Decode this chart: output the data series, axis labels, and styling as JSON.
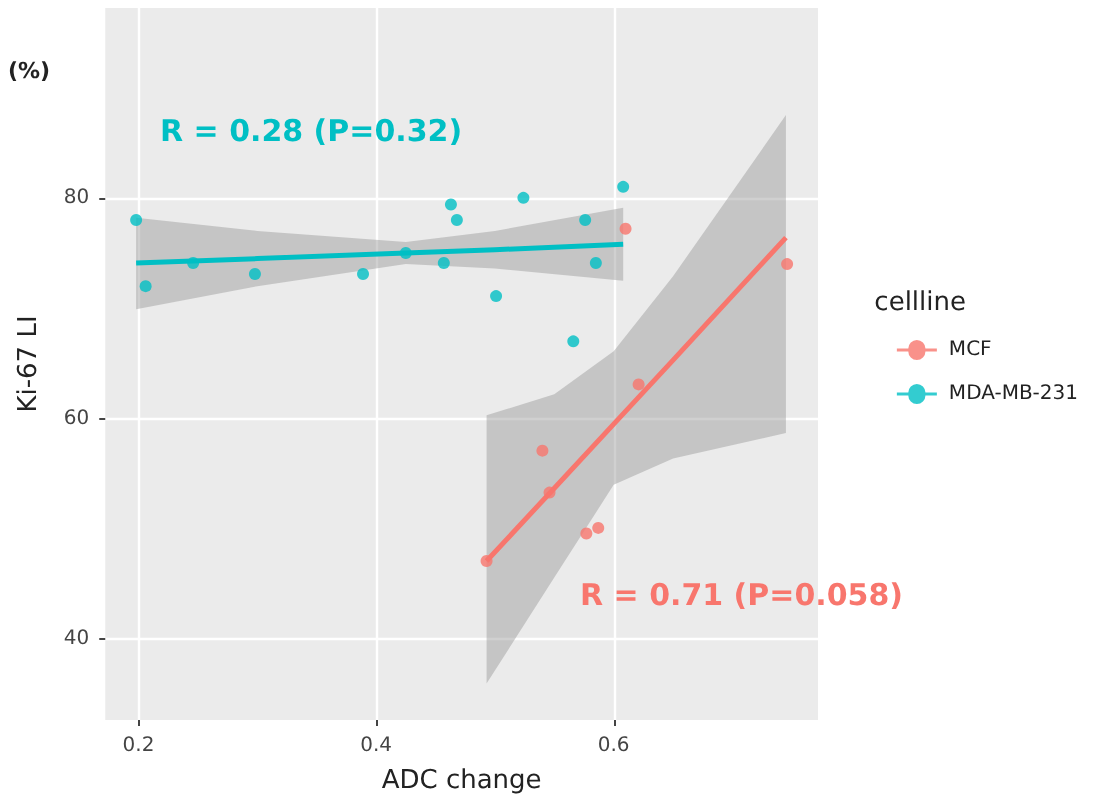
{
  "chart_data": {
    "type": "scatter",
    "xlabel": "ADC change",
    "ylabel": "Ki-67 LI",
    "legend_title": "cellline",
    "annotations": [
      "(%)",
      "R = 0.28 (P=0.32)",
      "R = 0.71 (P=0.058)"
    ],
    "xlim": [
      0.172,
      0.772
    ],
    "ylim": [
      32.7,
      97.2
    ],
    "xticks": [
      0.2,
      0.4,
      0.6
    ],
    "yticks": [
      40,
      60,
      80
    ],
    "grid": true,
    "legend": "right",
    "marker": "circle",
    "series": [
      {
        "name": "MCF",
        "color": "#f8766d",
        "x": [
          0.61,
          0.746,
          0.621,
          0.54,
          0.546,
          0.577,
          0.587,
          0.493
        ],
        "values": [
          77.2,
          74,
          63.1,
          57.1,
          53.3,
          49.6,
          50.1,
          47.1
        ]
      },
      {
        "name": "MDA-MB-231",
        "color": "#00bfc4",
        "x": [
          0.198,
          0.206,
          0.246,
          0.298,
          0.389,
          0.425,
          0.457,
          0.463,
          0.468,
          0.524,
          0.501,
          0.566,
          0.576,
          0.585,
          0.608
        ],
        "values": [
          78,
          72,
          74.1,
          73.1,
          73.1,
          75,
          74.1,
          79.4,
          78,
          80,
          71.1,
          67,
          78,
          74.1,
          81
        ]
      },
      {
        "type": "line",
        "marker": "none",
        "color": "#f8766d",
        "x": [
          0.493,
          0.55,
          0.6,
          0.65,
          0.745
        ],
        "values": [
          47.1,
          53.7,
          59.5,
          65.3,
          76.4
        ],
        "lower": [
          36,
          45.6,
          54,
          56.4,
          58.7
        ],
        "upper": [
          60.3,
          62.2,
          66.1,
          72.9,
          87.5
        ]
      },
      {
        "type": "line",
        "marker": "none",
        "color": "#00bfc4",
        "x": [
          0.198,
          0.3,
          0.425,
          0.5,
          0.608
        ],
        "values": [
          74.1,
          74.5,
          75,
          75.3,
          75.8
        ],
        "lower": [
          69.9,
          72,
          74,
          73.6,
          72.5
        ],
        "upper": [
          78.2,
          77,
          76,
          77,
          79.1
        ]
      }
    ]
  }
}
